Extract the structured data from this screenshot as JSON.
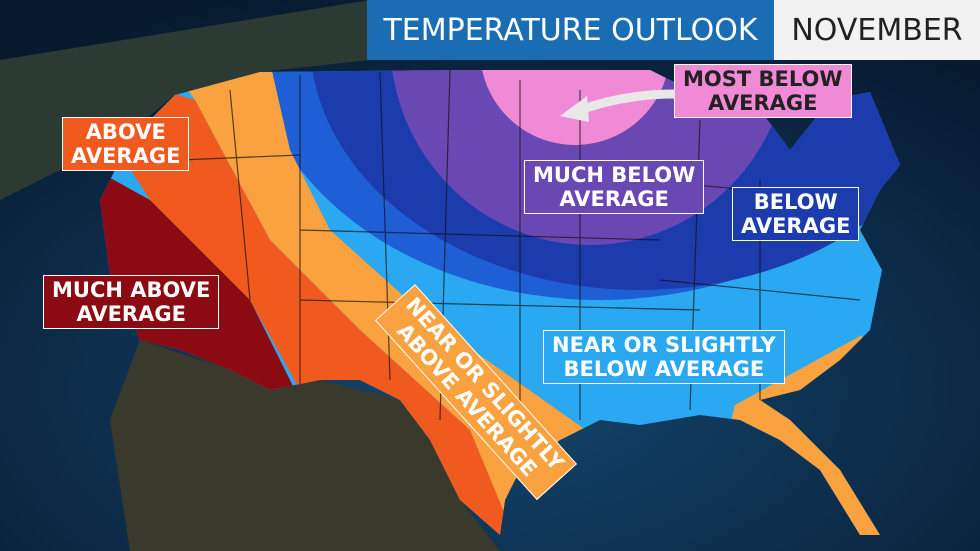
{
  "header": {
    "title": "TEMPERATURE OUTLOOK",
    "month": "NOVEMBER"
  },
  "colors": {
    "much_above": "#8c0b12",
    "above": "#f15a1f",
    "near_above": "#f9a23f",
    "near_below": "#2aa9f2",
    "below": "#1c3cae",
    "much_below": "#6a48b3",
    "most_below": "#f08ad6",
    "ocean": "#0b2440"
  },
  "labels": {
    "above": [
      "ABOVE",
      "AVERAGE"
    ],
    "much_above": [
      "MUCH ABOVE",
      "AVERAGE"
    ],
    "near_above": [
      "NEAR OR SLIGHTLY",
      "ABOVE AVERAGE"
    ],
    "near_below": [
      "NEAR OR SLIGHTLY",
      "BELOW AVERAGE"
    ],
    "below": [
      "BELOW",
      "AVERAGE"
    ],
    "much_below": [
      "MUCH BELOW",
      "AVERAGE"
    ],
    "most_below": [
      "MOST BELOW",
      "AVERAGE"
    ]
  }
}
